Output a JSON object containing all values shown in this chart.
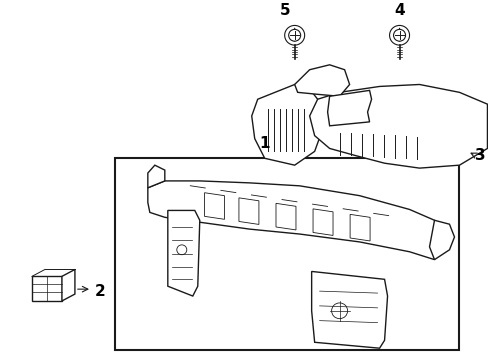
{
  "bg_color": "#ffffff",
  "line_color": "#1a1a1a",
  "box_line_color": "#1a1a1a",
  "label_color": "#000000",
  "figsize": [
    4.89,
    3.6
  ],
  "dpi": 100
}
